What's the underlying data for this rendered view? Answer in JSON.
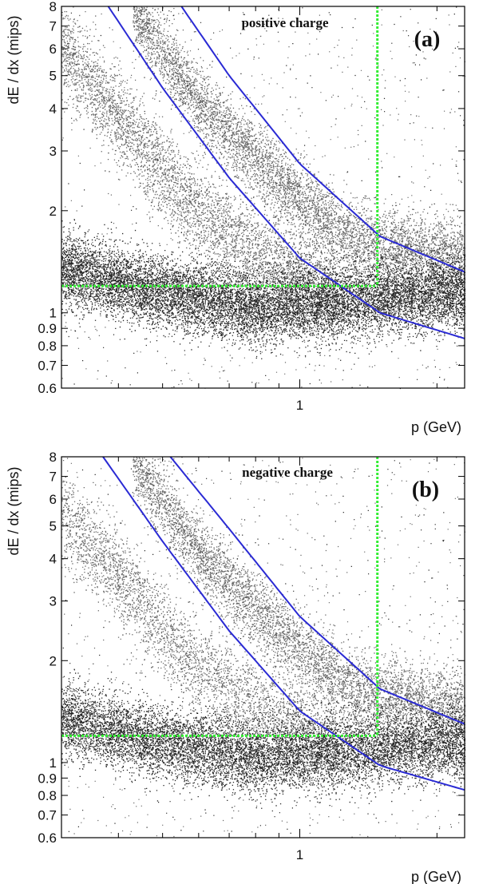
{
  "chart_data": [
    {
      "type": "scatter",
      "panel_label": "(a)",
      "annotation": "positive charge",
      "xlabel": "p (GeV)",
      "ylabel": "dE / dx (mips)",
      "xscale": "log",
      "yscale": "log",
      "xlim": [
        0.3,
        2.3
      ],
      "ylim": [
        0.6,
        8
      ],
      "xticks": [
        1
      ],
      "xtick_labels": [
        "1"
      ],
      "yticks": [
        0.6,
        0.7,
        0.8,
        0.9,
        1,
        2,
        3,
        4,
        5,
        6,
        7,
        8
      ],
      "ytick_labels": [
        "0.6",
        "0.7",
        "0.8",
        "0.9",
        "1",
        "2",
        "3",
        "4",
        "5",
        "6",
        "7",
        "8"
      ],
      "grid": false,
      "bands": [
        {
          "name": "",
          "center": [
            [
              0.3,
              1.35
            ],
            [
              0.5,
              1.15
            ],
            [
              0.8,
              1.03
            ],
            [
              1.2,
              1.08
            ],
            [
              2.3,
              1.15
            ]
          ],
          "width": 0.12,
          "n": 13000
        },
        {
          "name": "",
          "center": [
            [
              0.3,
              6.0
            ],
            [
              0.4,
              3.8
            ],
            [
              0.55,
              2.2
            ],
            [
              0.8,
              1.5
            ],
            [
              1.2,
              1.2
            ]
          ],
          "width": 0.15,
          "n": 4500
        },
        {
          "name": "",
          "center": [
            [
              0.43,
              7.8
            ],
            [
              0.6,
              4.2
            ],
            [
              0.85,
              2.6
            ],
            [
              1.3,
              1.65
            ],
            [
              2.3,
              1.45
            ]
          ],
          "width": 0.12,
          "n": 6000
        }
      ],
      "curves": [
        {
          "name": "",
          "points": [
            [
              0.38,
              8
            ],
            [
              0.5,
              4.6
            ],
            [
              0.7,
              2.5
            ],
            [
              1.0,
              1.45
            ],
            [
              1.5,
              1.0
            ],
            [
              2.3,
              0.84
            ]
          ]
        },
        {
          "name": "",
          "points": [
            [
              0.55,
              8
            ],
            [
              0.7,
              5.0
            ],
            [
              1.0,
              2.75
            ],
            [
              1.5,
              1.68
            ],
            [
              2.3,
              1.32
            ]
          ]
        }
      ],
      "cuts": {
        "p_cut": 1.48,
        "dedx_cut": 1.2
      },
      "colors": {
        "curve": "#2a2ad4",
        "cut": "#33ee33",
        "points": "#000000"
      }
    },
    {
      "type": "scatter",
      "panel_label": "(b)",
      "annotation": "negative charge",
      "xlabel": "p (GeV)",
      "ylabel": "dE / dx (mips)",
      "xscale": "log",
      "yscale": "log",
      "xlim": [
        0.3,
        2.3
      ],
      "ylim": [
        0.6,
        8
      ],
      "xticks": [
        1
      ],
      "xtick_labels": [
        "1"
      ],
      "yticks": [
        0.6,
        0.7,
        0.8,
        0.9,
        1,
        2,
        3,
        4,
        5,
        6,
        7,
        8
      ],
      "ytick_labels": [
        "0.6",
        "0.7",
        "0.8",
        "0.9",
        "1",
        "2",
        "3",
        "4",
        "5",
        "6",
        "7",
        "8"
      ],
      "grid": false,
      "bands": [
        {
          "name": "",
          "center": [
            [
              0.3,
              1.35
            ],
            [
              0.5,
              1.15
            ],
            [
              0.8,
              1.03
            ],
            [
              1.2,
              1.08
            ],
            [
              2.3,
              1.15
            ]
          ],
          "width": 0.12,
          "n": 13000
        },
        {
          "name": "",
          "center": [
            [
              0.3,
              5.5
            ],
            [
              0.4,
              3.6
            ],
            [
              0.55,
              2.1
            ],
            [
              0.8,
              1.45
            ],
            [
              1.2,
              1.2
            ]
          ],
          "width": 0.15,
          "n": 3500
        },
        {
          "name": "",
          "center": [
            [
              0.43,
              7.8
            ],
            [
              0.6,
              4.2
            ],
            [
              0.85,
              2.6
            ],
            [
              1.3,
              1.65
            ],
            [
              2.3,
              1.45
            ]
          ],
          "width": 0.12,
          "n": 5500
        }
      ],
      "curves": [
        {
          "name": "",
          "points": [
            [
              0.37,
              8
            ],
            [
              0.5,
              4.5
            ],
            [
              0.7,
              2.45
            ],
            [
              1.0,
              1.42
            ],
            [
              1.5,
              0.98
            ],
            [
              2.3,
              0.83
            ]
          ]
        },
        {
          "name": "",
          "points": [
            [
              0.52,
              8
            ],
            [
              0.7,
              4.9
            ],
            [
              1.0,
              2.7
            ],
            [
              1.5,
              1.65
            ],
            [
              2.3,
              1.3
            ]
          ]
        }
      ],
      "cuts": {
        "p_cut": 1.48,
        "dedx_cut": 1.2
      },
      "colors": {
        "curve": "#2a2ad4",
        "cut": "#33ee33",
        "points": "#000000"
      }
    }
  ]
}
